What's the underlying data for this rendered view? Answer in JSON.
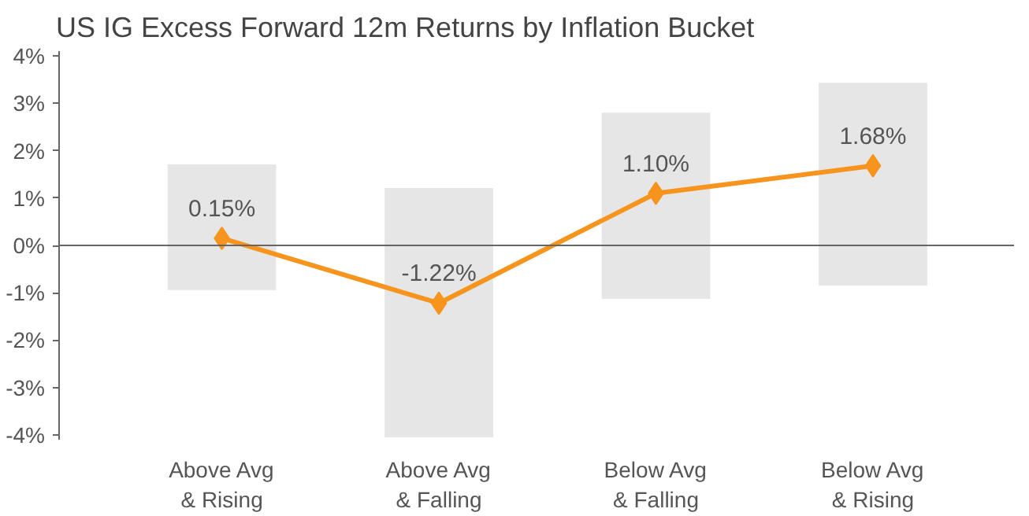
{
  "chart_data": {
    "type": "line",
    "title": "US IG Excess Forward 12m Returns by Inflation Bucket",
    "categories": [
      "Above Avg\n& Rising",
      "Above Avg\n& Falling",
      "Below Avg\n& Falling",
      "Below Avg\n& Rising"
    ],
    "series": [
      {
        "type": "bar",
        "color": "#e6e6e6",
        "base": [
          -0.94,
          -4.05,
          -1.13,
          -0.85
        ],
        "values": [
          2.65,
          5.26,
          3.93,
          4.28
        ]
      },
      {
        "color": "#f7941d",
        "values": [
          0.15,
          -1.22,
          1.1,
          1.68
        ],
        "value_labels": [
          "0.15%",
          "-1.22%",
          "1.10%",
          "1.68%"
        ]
      }
    ],
    "ylim": [
      -4.1,
      4.1
    ],
    "yticks": [
      {
        "value": -4,
        "label": "-4%"
      },
      {
        "value": -3,
        "label": "-3%"
      },
      {
        "value": -2,
        "label": "-2%"
      },
      {
        "value": -1,
        "label": "-1%"
      },
      {
        "value": 0,
        "label": "0%"
      },
      {
        "value": 1,
        "label": "1%"
      },
      {
        "value": 2,
        "label": "2%"
      },
      {
        "value": 3,
        "label": "3%"
      },
      {
        "value": 4,
        "label": "4%"
      }
    ],
    "ref_lines": [
      {
        "axis": "y",
        "value": 0,
        "color": "#666666"
      }
    ],
    "grid": false,
    "marker": "diamond",
    "line_style": "solid"
  }
}
